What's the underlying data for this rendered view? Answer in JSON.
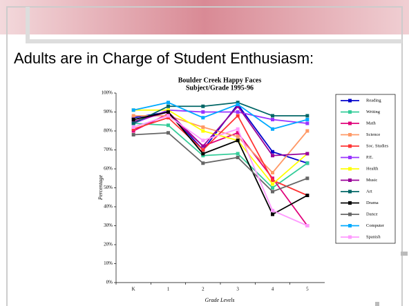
{
  "heading": "Adults are in Charge of Student Enthusiasm:",
  "chart_data": {
    "type": "line",
    "title": "Boulder Creek  Happy Faces",
    "subtitle": "Subject/Grade  1995-96",
    "y_label": "Percentage",
    "x_label": "Grade Levels",
    "categories": [
      "K",
      "1",
      "2",
      "3",
      "4",
      "5"
    ],
    "ylim": [
      0,
      100
    ],
    "yticks": [
      {
        "value": 0,
        "label": "0%"
      },
      {
        "value": 10,
        "label": "10%"
      },
      {
        "value": 20,
        "label": "20%"
      },
      {
        "value": 30,
        "label": "30%"
      },
      {
        "value": 40,
        "label": "40%"
      },
      {
        "value": 50,
        "label": "50%"
      },
      {
        "value": 60,
        "label": "60%"
      },
      {
        "value": 70,
        "label": "70%"
      },
      {
        "value": 80,
        "label": "80%"
      },
      {
        "value": 90,
        "label": "90%"
      },
      {
        "value": 100,
        "label": "100%"
      }
    ],
    "legend": "right",
    "series": [
      {
        "name": "Reading",
        "color": "#0000cc",
        "values": [
          87,
          90,
          70,
          94,
          69,
          63
        ]
      },
      {
        "name": "Writing",
        "color": "#33cc99",
        "values": [
          84,
          83,
          67,
          68,
          50,
          63
        ]
      },
      {
        "name": "Math",
        "color": "#e0007a",
        "values": [
          80,
          89,
          72,
          79,
          55,
          30
        ]
      },
      {
        "name": "Science",
        "color": "#ff9966",
        "values": [
          88,
          88,
          82,
          77,
          58,
          80
        ]
      },
      {
        "name": "Soc. Studies",
        "color": "#ff3333",
        "values": [
          81,
          87,
          70,
          88,
          54,
          46
        ]
      },
      {
        "name": "P.E.",
        "color": "#9933ff",
        "values": [
          84,
          91,
          90,
          90,
          86,
          84
        ]
      },
      {
        "name": "Health",
        "color": "#ffff00",
        "values": [
          91,
          91,
          80,
          75,
          52,
          68
        ]
      },
      {
        "name": "Music",
        "color": "#990099",
        "values": [
          85,
          90,
          72,
          93,
          67,
          68
        ]
      },
      {
        "name": "Art",
        "color": "#006666",
        "values": [
          84,
          93,
          93,
          95,
          88,
          88
        ]
      },
      {
        "name": "Drama",
        "color": "#000000",
        "values": [
          86,
          90,
          68,
          75,
          36,
          46
        ]
      },
      {
        "name": "Dance",
        "color": "#666666",
        "values": [
          78,
          79,
          63,
          66,
          48,
          55
        ]
      },
      {
        "name": "Computer",
        "color": "#00aaff",
        "values": [
          91,
          95,
          87,
          94,
          81,
          86
        ]
      },
      {
        "name": "Spanish",
        "color": "#ff99ff",
        "values": [
          82,
          88,
          75,
          81,
          38,
          30
        ]
      }
    ]
  }
}
